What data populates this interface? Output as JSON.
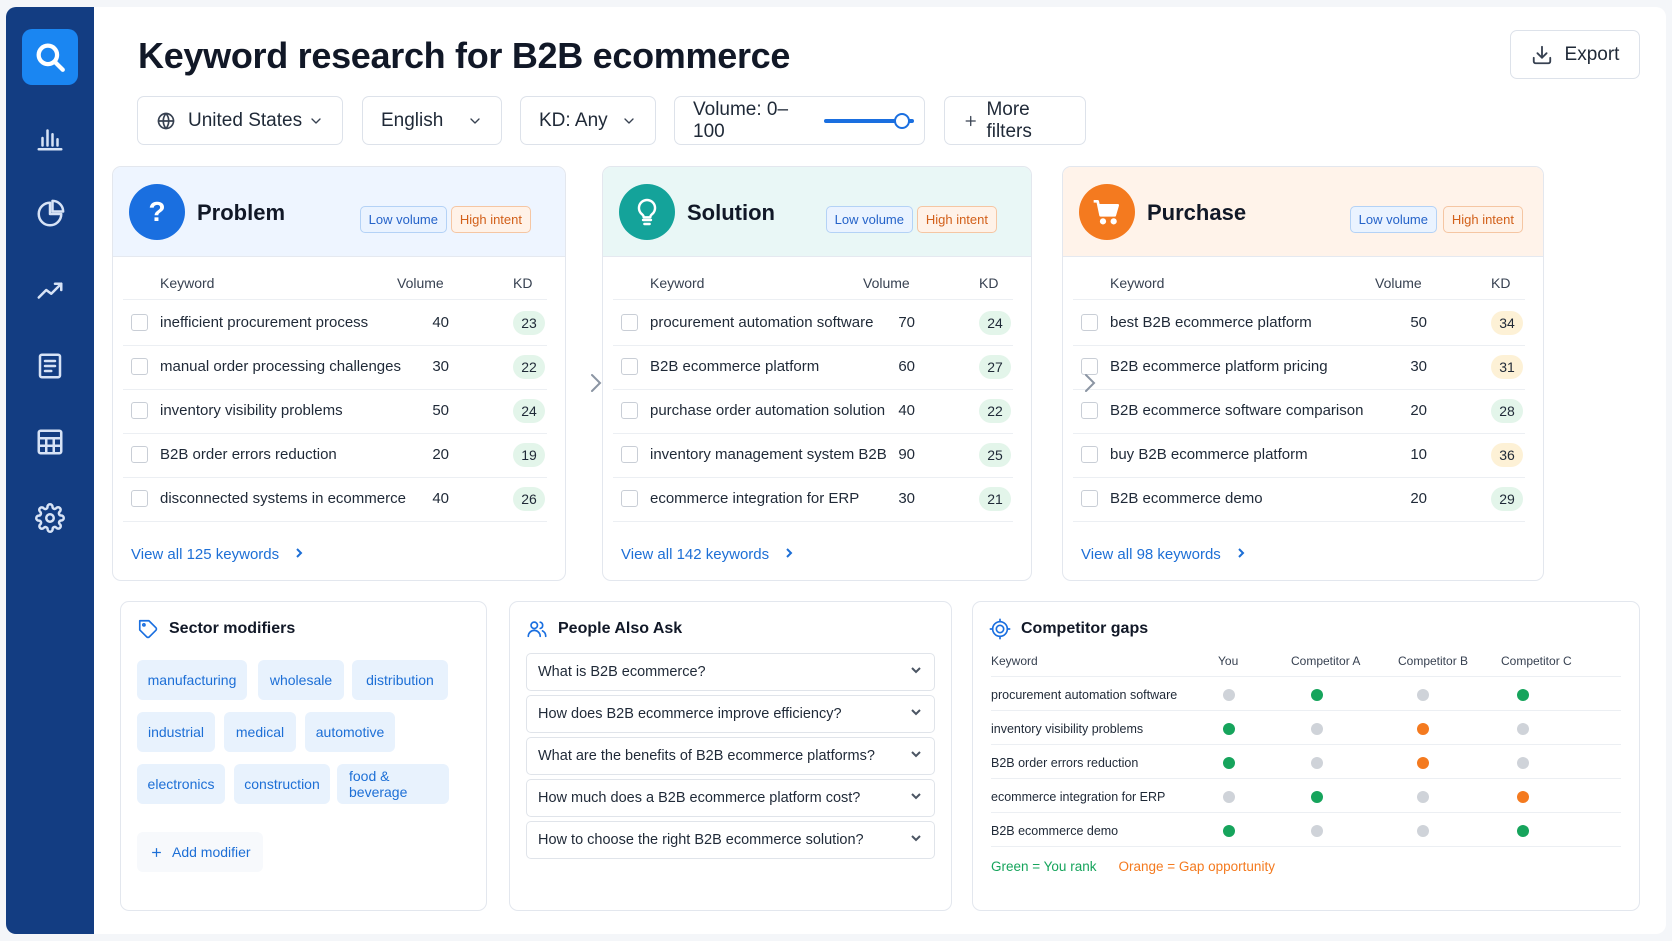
{
  "page": {
    "title": "Keyword research for B2B ecommerce",
    "export_label": "Export"
  },
  "sidebar": {
    "items": [
      {
        "icon": "search-icon",
        "active": true
      },
      {
        "icon": "bar-chart-icon"
      },
      {
        "icon": "pie-chart-icon"
      },
      {
        "icon": "trend-line-icon"
      },
      {
        "icon": "document-icon"
      },
      {
        "icon": "table-icon"
      },
      {
        "icon": "gear-icon"
      }
    ]
  },
  "filters": {
    "country": "United States",
    "language": "English",
    "kd": "KD: Any",
    "volume": "Volume: 0–100",
    "volume_slider_value": 1.0,
    "more": "More filters"
  },
  "cards": [
    {
      "title": "Problem",
      "icon": "question-icon",
      "color": "#1a6fe0",
      "head_bg": "#eef5ff",
      "tag_low": "Low volume",
      "tag_high": "High intent",
      "col_keyword": "Keyword",
      "col_volume": "Volume",
      "col_kd": "KD",
      "rows": [
        {
          "keyword": "inefficient procurement process",
          "volume": "40",
          "kd": "23",
          "kd_level": "g"
        },
        {
          "keyword": "manual order processing challenges",
          "volume": "30",
          "kd": "22",
          "kd_level": "g"
        },
        {
          "keyword": "inventory visibility problems",
          "volume": "50",
          "kd": "24",
          "kd_level": "g"
        },
        {
          "keyword": "B2B order errors reduction",
          "volume": "20",
          "kd": "19",
          "kd_level": "g"
        },
        {
          "keyword": "disconnected systems in ecommerce",
          "volume": "40",
          "kd": "26",
          "kd_level": "g"
        }
      ],
      "view_all": "View all 125 keywords"
    },
    {
      "title": "Solution",
      "icon": "lightbulb-icon",
      "color": "#14a39a",
      "head_bg": "#e9f7f6",
      "tag_low": "Low volume",
      "tag_high": "High intent",
      "col_keyword": "Keyword",
      "col_volume": "Volume",
      "col_kd": "KD",
      "rows": [
        {
          "keyword": "procurement automation software",
          "volume": "70",
          "kd": "24",
          "kd_level": "g"
        },
        {
          "keyword": "B2B ecommerce platform",
          "volume": "60",
          "kd": "27",
          "kd_level": "g"
        },
        {
          "keyword": "purchase order automation solution",
          "volume": "40",
          "kd": "22",
          "kd_level": "g"
        },
        {
          "keyword": "inventory management system B2B",
          "volume": "90",
          "kd": "25",
          "kd_level": "g"
        },
        {
          "keyword": "ecommerce integration for ERP",
          "volume": "30",
          "kd": "21",
          "kd_level": "g"
        }
      ],
      "view_all": "View all 142 keywords"
    },
    {
      "title": "Purchase",
      "icon": "cart-icon",
      "color": "#f47a1f",
      "head_bg": "#fff3ea",
      "tag_low": "Low volume",
      "tag_high": "High intent",
      "col_keyword": "Keyword",
      "col_volume": "Volume",
      "col_kd": "KD",
      "rows": [
        {
          "keyword": "best B2B ecommerce platform",
          "volume": "50",
          "kd": "34",
          "kd_level": "y"
        },
        {
          "keyword": "B2B ecommerce platform pricing",
          "volume": "30",
          "kd": "31",
          "kd_level": "y"
        },
        {
          "keyword": "B2B ecommerce software comparison",
          "volume": "20",
          "kd": "28",
          "kd_level": "g"
        },
        {
          "keyword": "buy B2B ecommerce platform",
          "volume": "10",
          "kd": "36",
          "kd_level": "y"
        },
        {
          "keyword": "B2B ecommerce demo",
          "volume": "20",
          "kd": "29",
          "kd_level": "g"
        }
      ],
      "view_all": "View all 98 keywords"
    }
  ],
  "sector": {
    "title": "Sector modifiers",
    "chips": [
      "manufacturing",
      "wholesale",
      "distribution",
      "industrial",
      "medical",
      "automotive",
      "electronics",
      "construction",
      "food & beverage"
    ],
    "add_label": "Add modifier"
  },
  "paa": {
    "title": "People Also Ask",
    "questions": [
      "What is B2B ecommerce?",
      "How does B2B ecommerce improve efficiency?",
      "What are the benefits of B2B ecommerce platforms?",
      "How much does a B2B ecommerce platform cost?",
      "How to choose the right B2B ecommerce solution?"
    ]
  },
  "competitor": {
    "title": "Competitor gaps",
    "columns": [
      "Keyword",
      "You",
      "Competitor A",
      "Competitor B",
      "Competitor C"
    ],
    "rows": [
      {
        "keyword": "procurement automation software",
        "status": [
          "gray",
          "green",
          "gray",
          "green"
        ]
      },
      {
        "keyword": "inventory visibility problems",
        "status": [
          "green",
          "gray",
          "orange",
          "gray"
        ]
      },
      {
        "keyword": "B2B order errors reduction",
        "status": [
          "green",
          "gray",
          "orange",
          "gray"
        ]
      },
      {
        "keyword": "ecommerce integration for ERP",
        "status": [
          "gray",
          "green",
          "gray",
          "orange"
        ]
      },
      {
        "keyword": "B2B ecommerce demo",
        "status": [
          "green",
          "gray",
          "gray",
          "green"
        ]
      }
    ],
    "legend_green": "Green = You rank",
    "legend_orange": "Orange = Gap opportunity",
    "colors": {
      "green": "#16a45c",
      "orange": "#f47a1f",
      "gray": "#cfd3d9"
    }
  }
}
